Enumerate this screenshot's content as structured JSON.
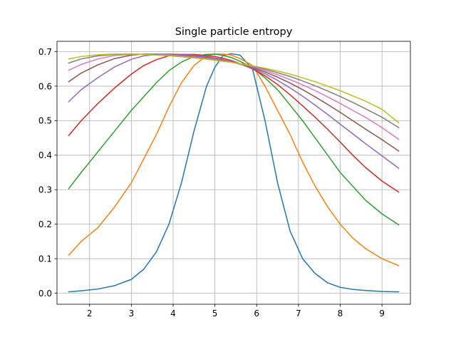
{
  "chart_data": {
    "type": "line",
    "title": "Single particle entropy",
    "xlabel": "",
    "ylabel": "",
    "xlim": [
      1.22,
      9.68
    ],
    "ylim": [
      -0.032,
      0.73
    ],
    "xticks": [
      2,
      3,
      4,
      5,
      6,
      7,
      8,
      9
    ],
    "yticks": [
      0.0,
      0.1,
      0.2,
      0.3,
      0.4,
      0.5,
      0.6,
      0.7
    ],
    "ytick_labels": [
      "0.0",
      "0.1",
      "0.2",
      "0.3",
      "0.4",
      "0.5",
      "0.6",
      "0.7"
    ],
    "grid": true,
    "x": [
      1.5,
      1.8,
      2.2,
      2.6,
      3.0,
      3.3,
      3.6,
      3.9,
      4.2,
      4.5,
      4.8,
      5.0,
      5.2,
      5.4,
      5.6,
      5.9,
      6.2,
      6.5,
      6.8,
      7.1,
      7.4,
      7.7,
      8.0,
      8.3,
      8.6,
      9.0,
      9.4
    ],
    "series": [
      {
        "color": "#1f77b4",
        "values": [
          0.004,
          0.007,
          0.012,
          0.022,
          0.04,
          0.07,
          0.12,
          0.2,
          0.32,
          0.47,
          0.6,
          0.655,
          0.69,
          0.694,
          0.69,
          0.65,
          0.5,
          0.32,
          0.18,
          0.1,
          0.057,
          0.03,
          0.017,
          0.011,
          0.008,
          0.005,
          0.004
        ]
      },
      {
        "color": "#ff7f0e",
        "values": [
          0.11,
          0.15,
          0.19,
          0.25,
          0.32,
          0.39,
          0.46,
          0.54,
          0.61,
          0.66,
          0.688,
          0.693,
          0.693,
          0.69,
          0.68,
          0.66,
          0.6,
          0.53,
          0.46,
          0.38,
          0.31,
          0.25,
          0.2,
          0.16,
          0.13,
          0.1,
          0.08
        ]
      },
      {
        "color": "#2ca02c",
        "values": [
          0.303,
          0.35,
          0.41,
          0.47,
          0.53,
          0.57,
          0.61,
          0.645,
          0.67,
          0.686,
          0.692,
          0.693,
          0.689,
          0.683,
          0.672,
          0.653,
          0.624,
          0.59,
          0.545,
          0.5,
          0.45,
          0.4,
          0.35,
          0.31,
          0.27,
          0.23,
          0.198
        ]
      },
      {
        "color": "#d62728",
        "values": [
          0.457,
          0.5,
          0.55,
          0.595,
          0.635,
          0.66,
          0.677,
          0.688,
          0.692,
          0.692,
          0.689,
          0.686,
          0.681,
          0.674,
          0.665,
          0.65,
          0.63,
          0.605,
          0.575,
          0.543,
          0.51,
          0.475,
          0.438,
          0.4,
          0.365,
          0.325,
          0.293
        ]
      },
      {
        "color": "#9467bd",
        "values": [
          0.555,
          0.59,
          0.625,
          0.656,
          0.678,
          0.688,
          0.692,
          0.693,
          0.692,
          0.69,
          0.686,
          0.682,
          0.677,
          0.671,
          0.664,
          0.652,
          0.636,
          0.617,
          0.595,
          0.571,
          0.545,
          0.518,
          0.49,
          0.462,
          0.434,
          0.398,
          0.362
        ]
      },
      {
        "color": "#8c564b",
        "values": [
          0.613,
          0.638,
          0.662,
          0.68,
          0.69,
          0.693,
          0.693,
          0.692,
          0.69,
          0.687,
          0.683,
          0.679,
          0.675,
          0.67,
          0.664,
          0.654,
          0.641,
          0.626,
          0.609,
          0.59,
          0.569,
          0.547,
          0.524,
          0.5,
          0.476,
          0.445,
          0.412
        ]
      },
      {
        "color": "#e377c2",
        "values": [
          0.646,
          0.663,
          0.679,
          0.689,
          0.692,
          0.693,
          0.692,
          0.691,
          0.688,
          0.685,
          0.681,
          0.678,
          0.674,
          0.67,
          0.665,
          0.656,
          0.645,
          0.633,
          0.619,
          0.604,
          0.587,
          0.569,
          0.55,
          0.53,
          0.51,
          0.48,
          0.446
        ]
      },
      {
        "color": "#7f7f7f",
        "values": [
          0.667,
          0.679,
          0.688,
          0.692,
          0.693,
          0.692,
          0.691,
          0.689,
          0.686,
          0.683,
          0.679,
          0.676,
          0.673,
          0.669,
          0.665,
          0.658,
          0.649,
          0.639,
          0.628,
          0.615,
          0.601,
          0.586,
          0.57,
          0.553,
          0.535,
          0.51,
          0.48
        ]
      },
      {
        "color": "#bcbd22",
        "values": [
          0.679,
          0.686,
          0.691,
          0.693,
          0.693,
          0.692,
          0.69,
          0.688,
          0.685,
          0.682,
          0.678,
          0.675,
          0.672,
          0.669,
          0.665,
          0.659,
          0.652,
          0.644,
          0.635,
          0.624,
          0.613,
          0.6,
          0.587,
          0.572,
          0.557,
          0.533,
          0.494
        ]
      }
    ]
  }
}
